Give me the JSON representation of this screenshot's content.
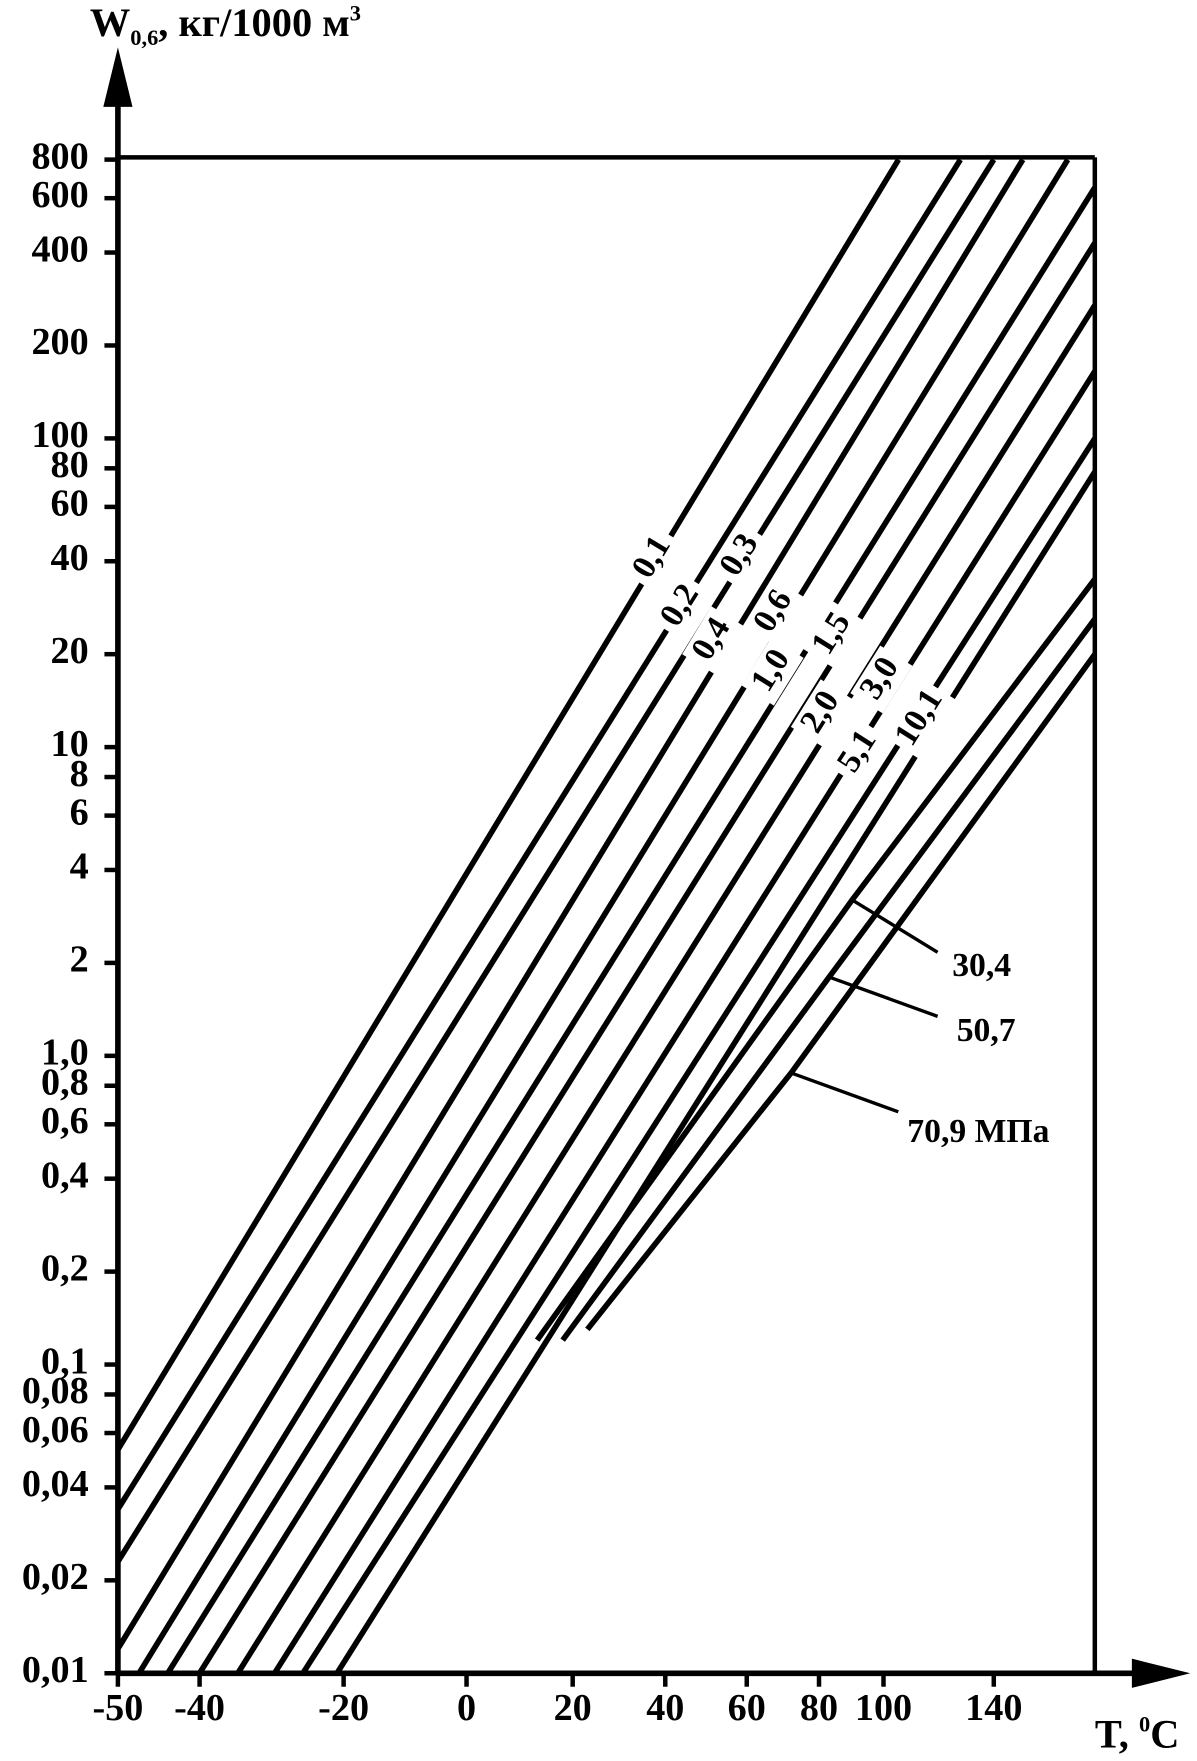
{
  "chart_data": {
    "type": "line",
    "ylabel": {
      "main": "W",
      "sub": "0,6",
      "unit": ", кг/1000 м",
      "sup": "3"
    },
    "xlabel": {
      "main": "T, ",
      "sup": "0",
      "unit": "C"
    },
    "xscale": "reciprocal-kelvin",
    "yscale": "log",
    "xlim": [
      -50,
      185
    ],
    "ylim": [
      0.01,
      800
    ],
    "xticks": [
      -50,
      -40,
      -20,
      0,
      20,
      40,
      60,
      80,
      100,
      140
    ],
    "yticks": [
      800,
      600,
      400,
      200,
      100,
      80,
      60,
      40,
      20,
      10,
      8,
      6,
      4,
      2,
      {
        "value": 1,
        "label": "1,0"
      },
      {
        "value": 0.8,
        "label": "0,8"
      },
      {
        "value": 0.6,
        "label": "0,6"
      },
      {
        "value": 0.4,
        "label": "0,4"
      },
      {
        "value": 0.2,
        "label": "0,2"
      },
      {
        "value": 0.1,
        "label": "0,1"
      },
      {
        "value": 0.08,
        "label": "0,08"
      },
      {
        "value": 0.06,
        "label": "0,06"
      },
      {
        "value": 0.04,
        "label": "0,04"
      },
      {
        "value": 0.02,
        "label": "0,02"
      },
      {
        "value": 0.01,
        "label": "0,01"
      }
    ],
    "series": [
      {
        "name": "0,1",
        "color": "#000000",
        "x": [
          -50,
          105
        ],
        "values": [
          0.053,
          800
        ]
      },
      {
        "name": "0,2",
        "color": "#000000",
        "x": [
          -50,
          127
        ],
        "values": [
          0.034,
          800
        ]
      },
      {
        "name": "0,3",
        "color": "#000000",
        "x": [
          -50,
          140
        ],
        "values": [
          0.023,
          800
        ]
      },
      {
        "name": "0,4",
        "color": "#000000",
        "x": [
          -50,
          152
        ],
        "values": [
          0.012,
          800
        ]
      },
      {
        "name": "0,6",
        "color": "#000000",
        "x": [
          -47.5,
          172
        ],
        "values": [
          0.01,
          800
        ]
      },
      {
        "name": "1,0",
        "color": "#000000",
        "x": [
          -44,
          185
        ],
        "values": [
          0.01,
          650
        ]
      },
      {
        "name": "1,5",
        "color": "#000000",
        "x": [
          -40,
          185
        ],
        "values": [
          0.01,
          430
        ]
      },
      {
        "name": "2,0",
        "color": "#000000",
        "x": [
          -35,
          185
        ],
        "values": [
          0.01,
          270
        ]
      },
      {
        "name": "3,0",
        "color": "#000000",
        "x": [
          -30,
          185
        ],
        "values": [
          0.01,
          165
        ]
      },
      {
        "name": "5,1",
        "color": "#000000",
        "x": [
          -26,
          185
        ],
        "values": [
          0.01,
          100
        ]
      },
      {
        "name": "10,1",
        "color": "#000000",
        "x": [
          -21,
          185
        ],
        "values": [
          0.01,
          78
        ]
      },
      {
        "name": "30,4",
        "color": "#000000",
        "x": [
          13,
          90,
          185
        ],
        "values": [
          0.12,
          3.2,
          35
        ]
      },
      {
        "name": "50,7",
        "color": "#000000",
        "x": [
          18,
          83,
          185
        ],
        "values": [
          0.12,
          1.8,
          26
        ]
      },
      {
        "name": "70,9 МПа",
        "color": "#000000",
        "x": [
          23,
          72,
          185
        ],
        "values": [
          0.13,
          0.88,
          20
        ]
      }
    ]
  }
}
